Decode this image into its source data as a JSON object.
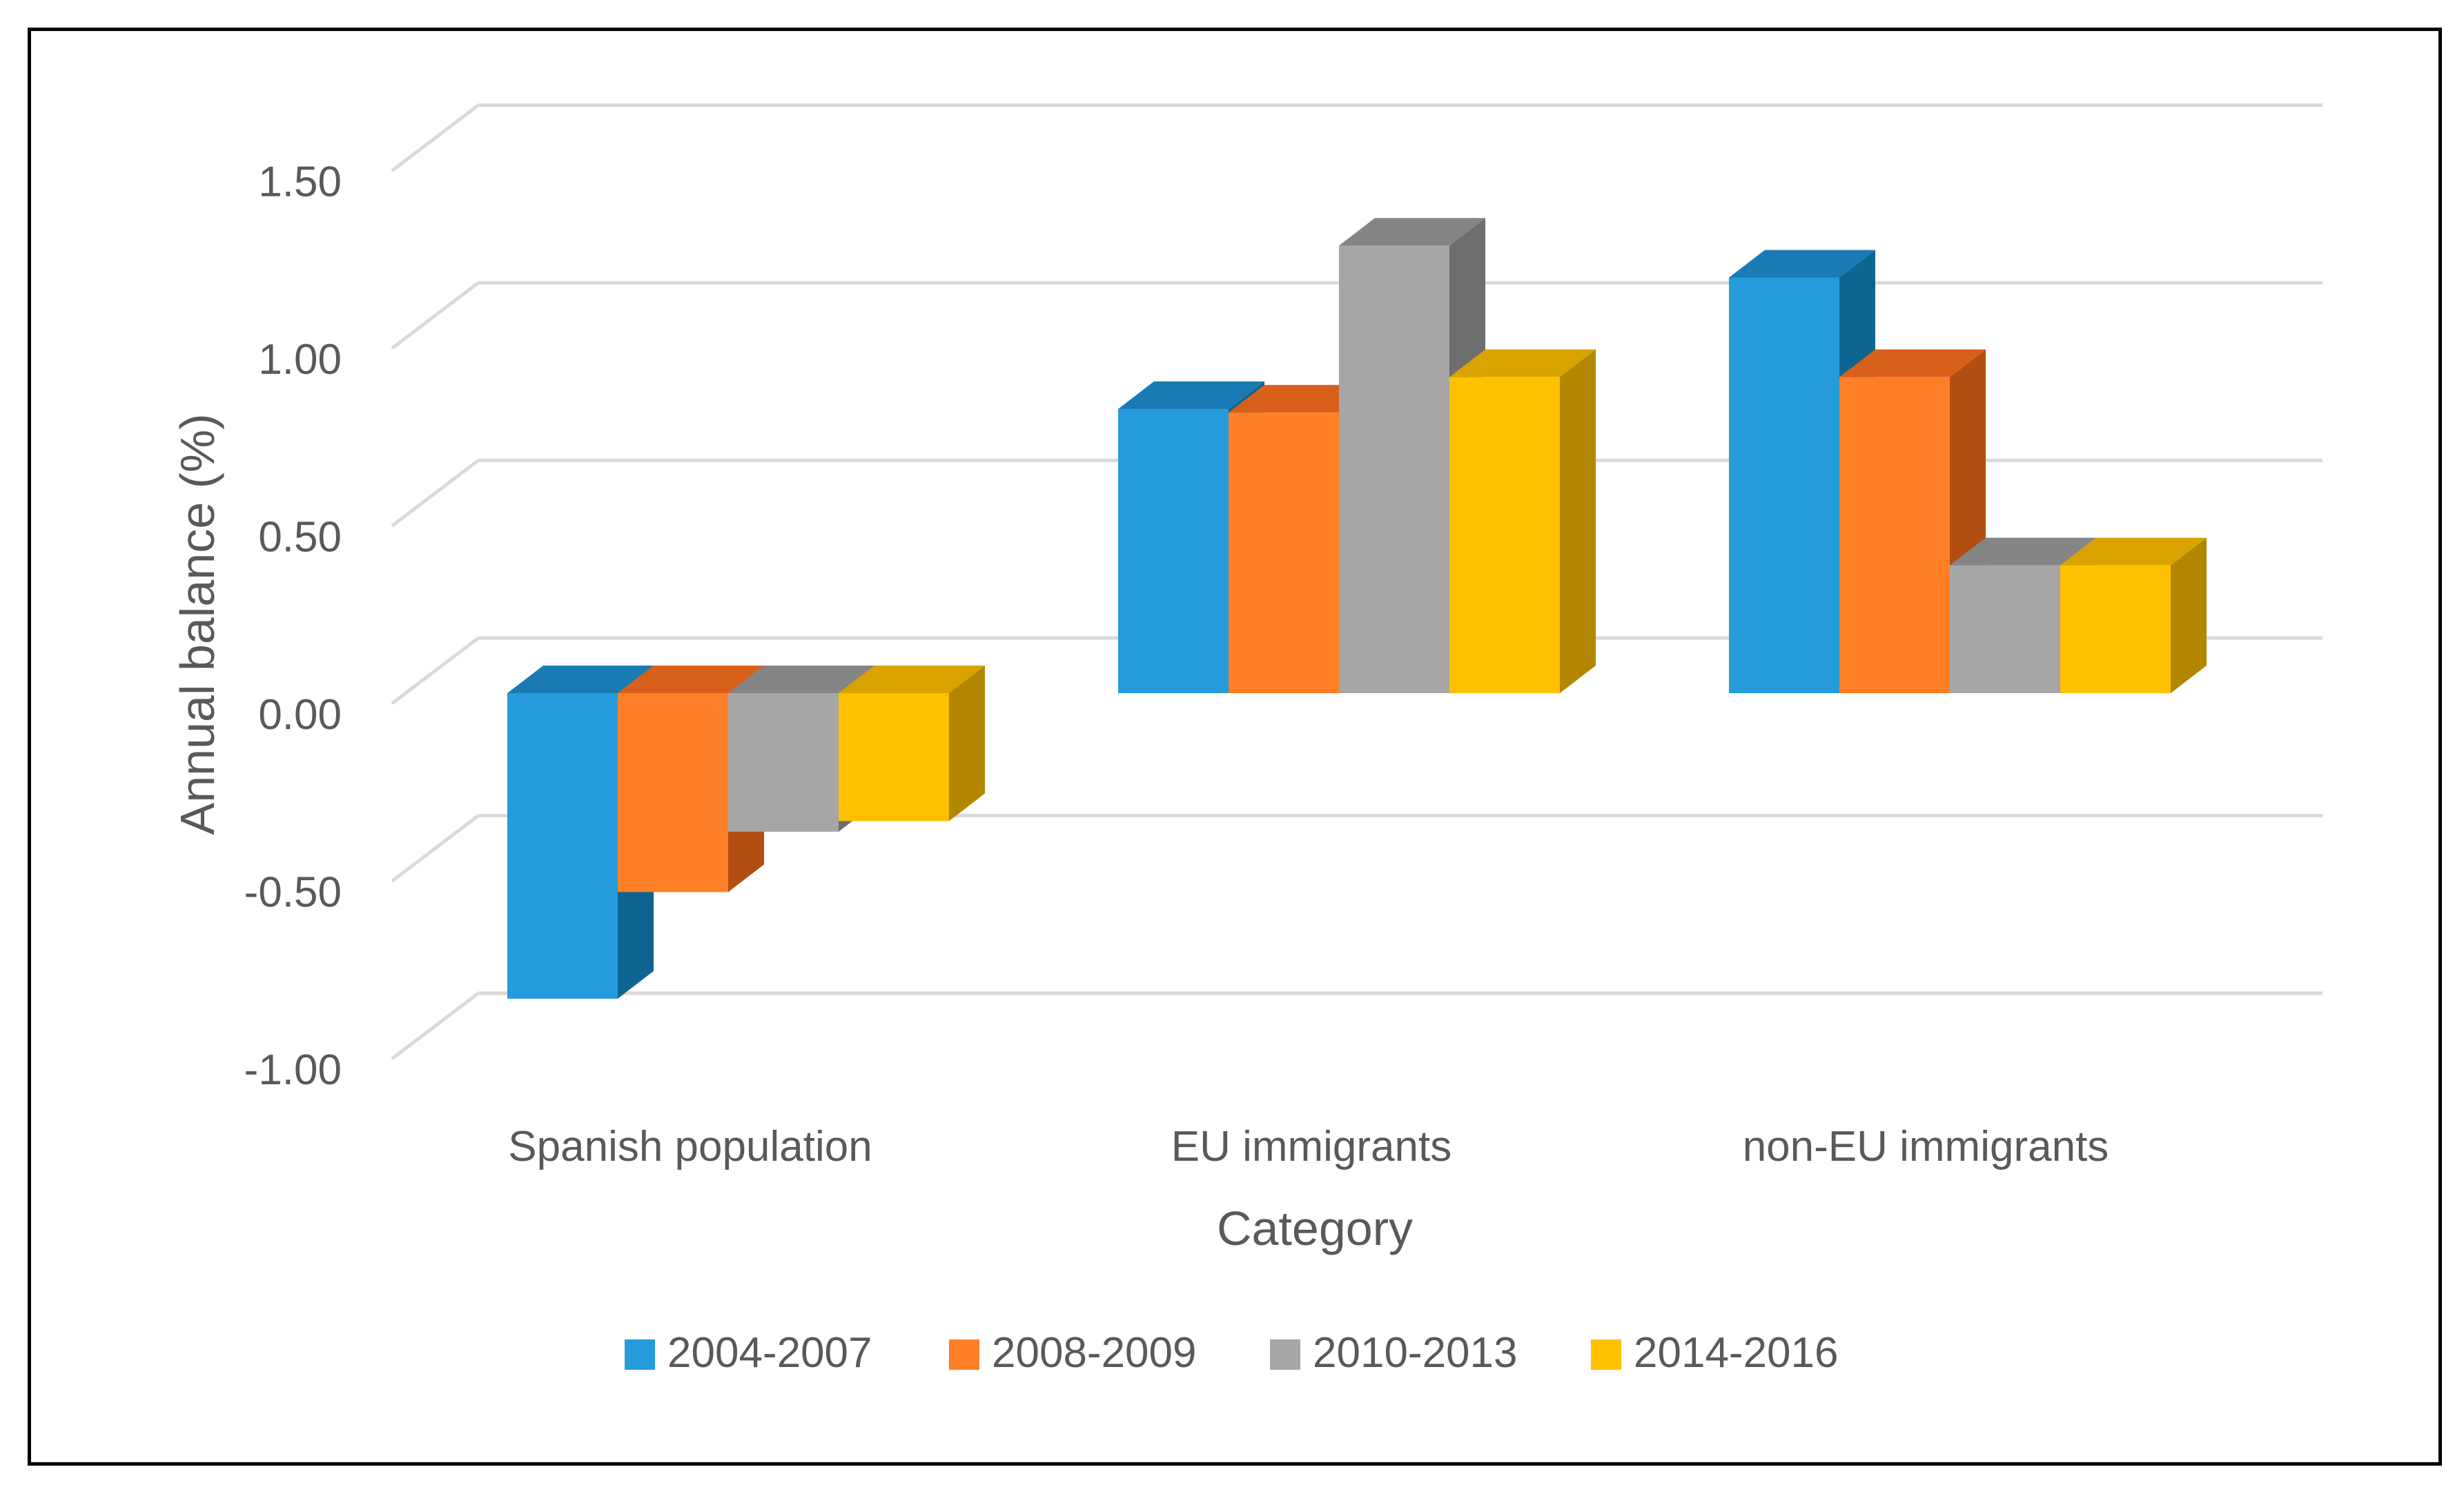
{
  "chart_data": {
    "type": "bar",
    "variant": "3d-clustered-column",
    "title": "",
    "xlabel": "Category",
    "ylabel": "Annual balance (%)",
    "ylim": [
      -1.0,
      1.5
    ],
    "yticks": [
      -1.0,
      -0.5,
      0.0,
      0.5,
      1.0,
      1.5
    ],
    "ytick_labels": [
      "-1.00",
      "-0.50",
      "0.00",
      "0.50",
      "1.00",
      "1.50"
    ],
    "grid": true,
    "legend_position": "bottom",
    "categories": [
      "Spanish population",
      "EU immigrants",
      "non-EU immigrants"
    ],
    "series": [
      {
        "name": "2004-2007",
        "values": [
          -0.86,
          0.8,
          1.17
        ],
        "color": "#259BDB",
        "side_color": "#0E6591",
        "top_color": "#1A7BB4"
      },
      {
        "name": "2008-2009",
        "values": [
          -0.56,
          0.79,
          0.89
        ],
        "color": "#FF7F27",
        "side_color": "#B34E12",
        "top_color": "#D9601B"
      },
      {
        "name": "2010-2013",
        "values": [
          -0.39,
          1.26,
          0.36
        ],
        "color": "#A6A6A6",
        "side_color": "#6E6E6E",
        "top_color": "#858585"
      },
      {
        "name": "2014-2016",
        "values": [
          -0.36,
          0.89,
          0.36
        ],
        "color": "#FFC000",
        "side_color": "#B38600",
        "top_color": "#D9A300"
      }
    ]
  }
}
